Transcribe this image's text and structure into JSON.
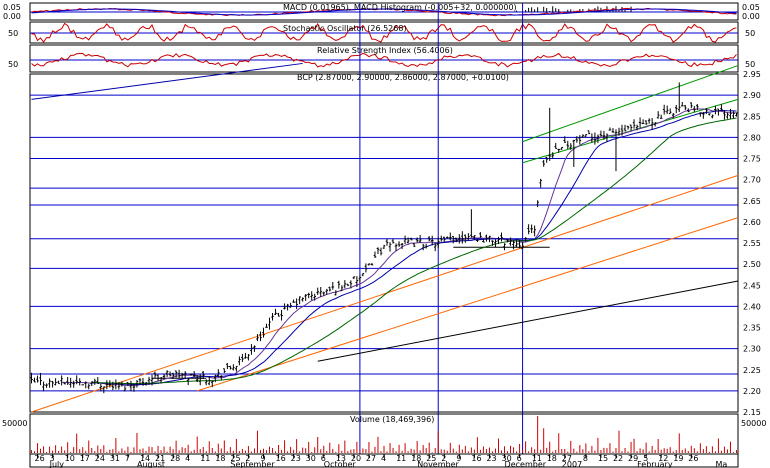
{
  "chart_data": {
    "type": "candlestick",
    "colors": {
      "background": "#ffffff",
      "frame": "#000000",
      "hline": "#0000cc",
      "vline": "#0000cc",
      "candle": "#000000",
      "ma_blue": "#0000aa",
      "ma_green": "#006600",
      "ma_purple": "#663399",
      "trend_orange": "#ff6600",
      "trend_black": "#000000",
      "channel_green": "#009900",
      "volume": "#cc0000",
      "osc_red": "#cc0000",
      "macd_red": "#cc0000",
      "macd_blue": "#0000cc"
    },
    "macd_panel": {
      "title": "MACD (0.01965), MACD Histogram (-0.005+32, 0.000000)",
      "ticks": [
        "0.05",
        "0.00"
      ]
    },
    "stoch_panel": {
      "title": "Stochastic Oscillator (26.5268)",
      "ticks": [
        "50"
      ]
    },
    "rsi_panel": {
      "title": "Relative Strength Index (56.4006)",
      "ticks": [
        "50"
      ]
    },
    "price_panel": {
      "title": "BCP (2.87000, 2.90000, 2.86000, 2.87000, +0.0100)",
      "ylim": [
        2.15,
        2.95
      ],
      "yticks": [
        "2.95",
        "2.90",
        "2.85",
        "2.80",
        "2.75",
        "2.70",
        "2.65",
        "2.60",
        "2.55",
        "2.50",
        "2.45",
        "2.40",
        "2.35",
        "2.30",
        "2.25",
        "2.20",
        "2.15"
      ],
      "horizontal_lines": [
        2.9,
        2.8,
        2.75,
        2.68,
        2.64,
        2.56,
        2.49,
        2.4,
        2.3,
        2.24,
        2.2
      ],
      "anchors": [
        {
          "x": 0,
          "y": 2.22
        },
        {
          "x": 20,
          "y": 2.22
        },
        {
          "x": 30,
          "y": 2.21
        },
        {
          "x": 45,
          "y": 2.24
        },
        {
          "x": 60,
          "y": 2.23
        },
        {
          "x": 70,
          "y": 2.27
        },
        {
          "x": 80,
          "y": 2.37
        },
        {
          "x": 90,
          "y": 2.42
        },
        {
          "x": 100,
          "y": 2.44
        },
        {
          "x": 110,
          "y": 2.47
        },
        {
          "x": 115,
          "y": 2.53
        },
        {
          "x": 120,
          "y": 2.55
        },
        {
          "x": 135,
          "y": 2.55
        },
        {
          "x": 145,
          "y": 2.57
        },
        {
          "x": 150,
          "y": 2.56
        },
        {
          "x": 163,
          "y": 2.55
        },
        {
          "x": 167,
          "y": 2.59
        },
        {
          "x": 170,
          "y": 2.74
        },
        {
          "x": 175,
          "y": 2.78
        },
        {
          "x": 185,
          "y": 2.8
        },
        {
          "x": 200,
          "y": 2.82
        },
        {
          "x": 215,
          "y": 2.87
        },
        {
          "x": 225,
          "y": 2.86
        }
      ]
    },
    "volume_panel": {
      "title": "Volume (18,469,396)",
      "ticks": [
        "50000"
      ],
      "ylim": [
        0,
        80000
      ],
      "pattern": [
        9000,
        4000,
        15000,
        7000,
        22000,
        3000,
        11000,
        6000,
        27000,
        5000,
        13000,
        8000,
        18000,
        2500,
        10000,
        34000,
        6000,
        12000,
        4500,
        20000
      ]
    },
    "x_axis": {
      "ticks": [
        {
          "i": 2,
          "label": "26"
        },
        {
          "i": 7,
          "label": "3"
        },
        {
          "i": 12,
          "label": "10"
        },
        {
          "i": 17,
          "label": "17"
        },
        {
          "i": 22,
          "label": "24"
        },
        {
          "i": 27,
          "label": "31"
        },
        {
          "i": 32,
          "label": "7"
        },
        {
          "i": 37,
          "label": "14"
        },
        {
          "i": 42,
          "label": "21"
        },
        {
          "i": 47,
          "label": "28"
        },
        {
          "i": 52,
          "label": "4"
        },
        {
          "i": 57,
          "label": "11"
        },
        {
          "i": 62,
          "label": "18"
        },
        {
          "i": 67,
          "label": "25"
        },
        {
          "i": 72,
          "label": "2"
        },
        {
          "i": 77,
          "label": "9"
        },
        {
          "i": 82,
          "label": "16"
        },
        {
          "i": 87,
          "label": "23"
        },
        {
          "i": 92,
          "label": "30"
        },
        {
          "i": 97,
          "label": "6"
        },
        {
          "i": 102,
          "label": "13"
        },
        {
          "i": 107,
          "label": "20"
        },
        {
          "i": 112,
          "label": "27"
        },
        {
          "i": 117,
          "label": "4"
        },
        {
          "i": 122,
          "label": "11"
        },
        {
          "i": 127,
          "label": "18"
        },
        {
          "i": 132,
          "label": "25"
        },
        {
          "i": 137,
          "label": "2"
        },
        {
          "i": 142,
          "label": "9"
        },
        {
          "i": 147,
          "label": "16"
        },
        {
          "i": 152,
          "label": "23"
        },
        {
          "i": 157,
          "label": "30"
        },
        {
          "i": 162,
          "label": "6"
        },
        {
          "i": 167,
          "label": "11"
        },
        {
          "i": 172,
          "label": "18"
        },
        {
          "i": 177,
          "label": "27"
        },
        {
          "i": 184,
          "label": "8"
        },
        {
          "i": 189,
          "label": "15"
        },
        {
          "i": 194,
          "label": "22"
        },
        {
          "i": 199,
          "label": "29"
        },
        {
          "i": 204,
          "label": "5"
        },
        {
          "i": 209,
          "label": "12"
        },
        {
          "i": 214,
          "label": "19"
        },
        {
          "i": 219,
          "label": "26"
        }
      ],
      "months": [
        {
          "i": 10,
          "label": "July"
        },
        {
          "i": 39,
          "label": "August"
        },
        {
          "i": 70,
          "label": "September"
        },
        {
          "i": 101,
          "label": "October"
        },
        {
          "i": 132,
          "label": "November"
        },
        {
          "i": 161,
          "label": "December"
        },
        {
          "i": 180,
          "label": "2007"
        },
        {
          "i": 205,
          "label": "February"
        },
        {
          "i": 231,
          "label": "Ma"
        }
      ],
      "vertical_lines": [
        109,
        135,
        163
      ]
    }
  }
}
